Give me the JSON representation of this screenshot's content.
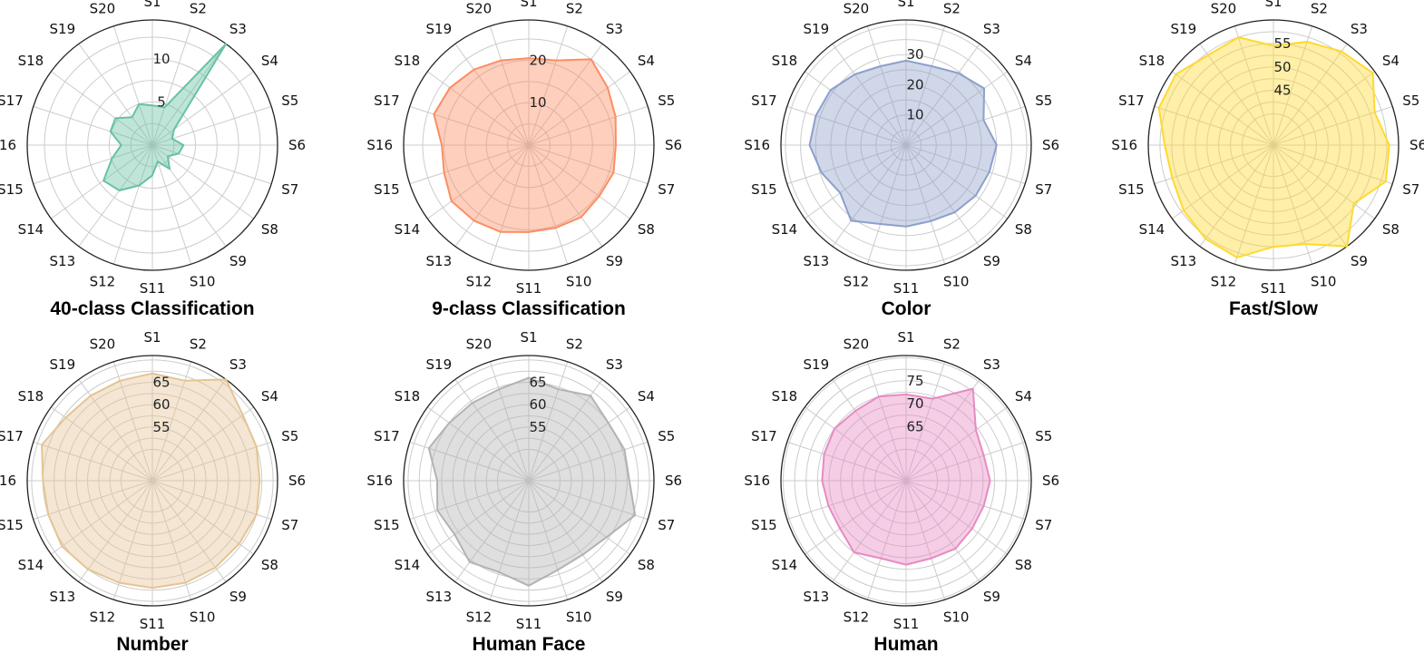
{
  "chart_data": [
    {
      "type": "radar",
      "title": "40-class  Classification",
      "color": "#66c2a5",
      "categories": [
        "S1",
        "S2",
        "S3",
        "S4",
        "S5",
        "S6",
        "S7",
        "S8",
        "S9",
        "S10",
        "S11",
        "S12",
        "S13",
        "S14",
        "S15",
        "S16",
        "S17",
        "S18",
        "S19",
        "S20"
      ],
      "values": [
        4.6,
        4.6,
        16.0,
        3.1,
        2.4,
        3.6,
        3.2,
        2.2,
        3.4,
        2.0,
        3.5,
        4.9,
        6.5,
        7.0,
        4.9,
        3.6,
        5.1,
        5.3,
        4.0,
        5.0
      ],
      "rmax": 14.5,
      "rticks": [
        5,
        10
      ],
      "grid": true
    },
    {
      "type": "radar",
      "title": "9-class  Classification",
      "color": "#fc8d62",
      "categories": [
        "S1",
        "S2",
        "S3",
        "S4",
        "S5",
        "S6",
        "S7",
        "S8",
        "S9",
        "S10",
        "S11",
        "S12",
        "S13",
        "S14",
        "S15",
        "S16",
        "S17",
        "S18",
        "S19",
        "S20"
      ],
      "values": [
        20.5,
        21.0,
        25.0,
        23.0,
        21.5,
        20.5,
        21.0,
        20.5,
        21.0,
        20.5,
        20.5,
        21.5,
        22.0,
        22.5,
        21.0,
        20.5,
        23.5,
        23.0,
        22.0,
        21.0
      ],
      "rmax": 29.5,
      "rticks": [
        10,
        20
      ],
      "grid": true
    },
    {
      "type": "radar",
      "title": "Color",
      "color": "#8da0cb",
      "categories": [
        "S1",
        "S2",
        "S3",
        "S4",
        "S5",
        "S6",
        "S7",
        "S8",
        "S9",
        "S10",
        "S11",
        "S12",
        "S13",
        "S14",
        "S15",
        "S16",
        "S17",
        "S18",
        "S19",
        "S20"
      ],
      "values": [
        28.0,
        27.5,
        29.5,
        32.0,
        27.0,
        30.0,
        29.0,
        28.5,
        27.5,
        26.5,
        27.0,
        27.5,
        31.0,
        27.0,
        29.5,
        32.0,
        31.5,
        31.0,
        29.0,
        27.5
      ],
      "rmax": 41.5,
      "rticks": [
        10,
        20,
        30
      ],
      "grid": true
    },
    {
      "type": "radar",
      "title": "Fast/Slow",
      "color": "#ffd92f",
      "categories": [
        "S1",
        "S2",
        "S3",
        "S4",
        "S5",
        "S6",
        "S7",
        "S8",
        "S9",
        "S10",
        "S11",
        "S12",
        "S13",
        "S14",
        "S15",
        "S16",
        "S17",
        "S18",
        "S19",
        "S20"
      ],
      "values": [
        54.5,
        56.5,
        58.0,
        59.5,
        56.0,
        58.0,
        58.5,
        54.5,
        60.5,
        55.5,
        55.0,
        58.5,
        58.0,
        57.0,
        56.0,
        56.5,
        59.0,
        59.0,
        57.0,
        57.5
      ],
      "rmax": 60.0,
      "rticks": [
        45,
        50,
        55
      ],
      "grid": true
    },
    {
      "type": "radar",
      "title": "Number",
      "color": "#e5c494",
      "categories": [
        "S1",
        "S2",
        "S3",
        "S4",
        "S5",
        "S6",
        "S7",
        "S8",
        "S9",
        "S10",
        "S11",
        "S12",
        "S13",
        "S14",
        "S15",
        "S16",
        "S17",
        "S18",
        "S19",
        "S20"
      ],
      "values": [
        67.0,
        66.5,
        71.0,
        68.0,
        67.5,
        67.0,
        67.5,
        67.0,
        67.0,
        67.0,
        67.0,
        67.0,
        67.5,
        68.0,
        67.5,
        67.5,
        69.0,
        67.0,
        66.5,
        66.5
      ],
      "rmax": 71.0,
      "rticks": [
        55,
        60,
        65
      ],
      "grid": true
    },
    {
      "type": "radar",
      "title": "Human Face",
      "color": "#b3b3b3",
      "categories": [
        "S1",
        "S2",
        "S3",
        "S4",
        "S5",
        "S6",
        "S7",
        "S8",
        "S9",
        "S10",
        "S11",
        "S12",
        "S13",
        "S14",
        "S15",
        "S16",
        "S17",
        "S18",
        "S19",
        "S20"
      ],
      "values": [
        66.0,
        64.5,
        66.5,
        65.0,
        65.5,
        65.5,
        68.0,
        64.5,
        63.5,
        64.0,
        66.5,
        64.5,
        65.5,
        63.5,
        64.5,
        63.5,
        66.5,
        65.0,
        64.5,
        64.5
      ],
      "rmax": 71.0,
      "rticks": [
        55,
        60,
        65
      ],
      "grid": true
    },
    {
      "type": "radar",
      "title": "Human",
      "color": "#e78ac3",
      "categories": [
        "S1",
        "S2",
        "S3",
        "S4",
        "S5",
        "S6",
        "S7",
        "S8",
        "S9",
        "S10",
        "S11",
        "S12",
        "S13",
        "S14",
        "S15",
        "S16",
        "S17",
        "S18",
        "S19",
        "S20"
      ],
      "values": [
        72.0,
        72.0,
        78.0,
        72.0,
        71.0,
        71.5,
        71.0,
        71.0,
        71.5,
        71.0,
        71.5,
        71.0,
        72.5,
        71.0,
        71.0,
        71.5,
        72.0,
        72.5,
        72.0,
        72.5
      ],
      "rmax": 80.5,
      "rticks": [
        65,
        70,
        75
      ],
      "grid": true
    }
  ]
}
